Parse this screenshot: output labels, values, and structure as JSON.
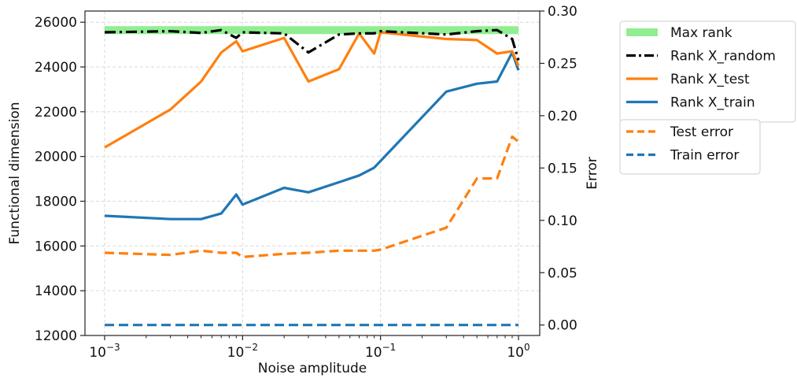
{
  "chart_data": {
    "type": "line",
    "xlabel": "Noise amplitude",
    "ylabel": "Functional dimension",
    "y2label": "Error",
    "xscale": "log",
    "xlim": [
      0.001,
      1.0
    ],
    "ylim": [
      12000,
      26500
    ],
    "y2lim": [
      -0.01,
      0.3
    ],
    "grid": true,
    "x_ticks": [
      {
        "value": 0.001,
        "base": "10",
        "exp": "−3"
      },
      {
        "value": 0.01,
        "base": "10",
        "exp": "−2"
      },
      {
        "value": 0.1,
        "base": "10",
        "exp": "−1"
      },
      {
        "value": 1,
        "base": "10",
        "exp": "0"
      }
    ],
    "y_ticks": [
      "12000",
      "14000",
      "16000",
      "18000",
      "20000",
      "22000",
      "24000",
      "26000"
    ],
    "y2_ticks": [
      "0.00",
      "0.05",
      "0.10",
      "0.15",
      "0.20",
      "0.25",
      "0.30"
    ],
    "legend_upper": [
      "Max rank",
      "Rank X_random",
      "Rank X_test",
      "Rank X_train"
    ],
    "legend_lower": [
      "Test error",
      "Train error"
    ],
    "legend_position": "outside-right",
    "colors": {
      "max": "#90ee90",
      "random": "#000000",
      "test": "#ff7f0e",
      "train": "#1f77b4"
    },
    "x": [
      0.001,
      0.003,
      0.005,
      0.007,
      0.009,
      0.01,
      0.02,
      0.03,
      0.05,
      0.07,
      0.09,
      0.1,
      0.3,
      0.5,
      0.7,
      0.9,
      1.0
    ],
    "series": [
      {
        "name": "Max rank",
        "axis": "left",
        "style": "thick",
        "values": [
          25650,
          25650,
          25650,
          25650,
          25650,
          25650,
          25650,
          25650,
          25650,
          25650,
          25650,
          25650,
          25650,
          25650,
          25650,
          25650,
          25650
        ]
      },
      {
        "name": "Rank X_random",
        "axis": "left",
        "style": "dashdot",
        "values": [
          25550,
          25600,
          25520,
          25650,
          25300,
          25550,
          25500,
          24650,
          25450,
          25500,
          25500,
          25600,
          25450,
          25600,
          25650,
          25250,
          24300
        ]
      },
      {
        "name": "Rank X_test",
        "axis": "left",
        "style": "solid",
        "values": [
          20400,
          22100,
          23350,
          24650,
          25150,
          24700,
          25300,
          23350,
          23900,
          25500,
          24600,
          25550,
          25250,
          25200,
          24600,
          24700,
          24050
        ]
      },
      {
        "name": "Rank X_train",
        "axis": "left",
        "style": "solid",
        "values": [
          17350,
          17200,
          17200,
          17450,
          18300,
          17850,
          18600,
          18400,
          18850,
          19150,
          19500,
          19800,
          22900,
          23250,
          23350,
          24650,
          23850
        ]
      },
      {
        "name": "Test error",
        "axis": "right",
        "style": "dashed",
        "values": [
          0.069,
          0.067,
          0.071,
          0.069,
          0.069,
          0.065,
          0.068,
          0.069,
          0.071,
          0.071,
          0.071,
          0.072,
          0.093,
          0.14,
          0.14,
          0.18,
          0.175
        ]
      },
      {
        "name": "Train error",
        "axis": "right",
        "style": "dashed",
        "values": [
          0.0,
          0.0,
          0.0,
          0.0,
          0.0,
          0.0,
          0.0,
          0.0,
          0.0,
          0.0,
          0.0,
          0.0,
          0.0,
          0.0,
          0.0,
          0.0,
          0.0
        ]
      }
    ]
  }
}
